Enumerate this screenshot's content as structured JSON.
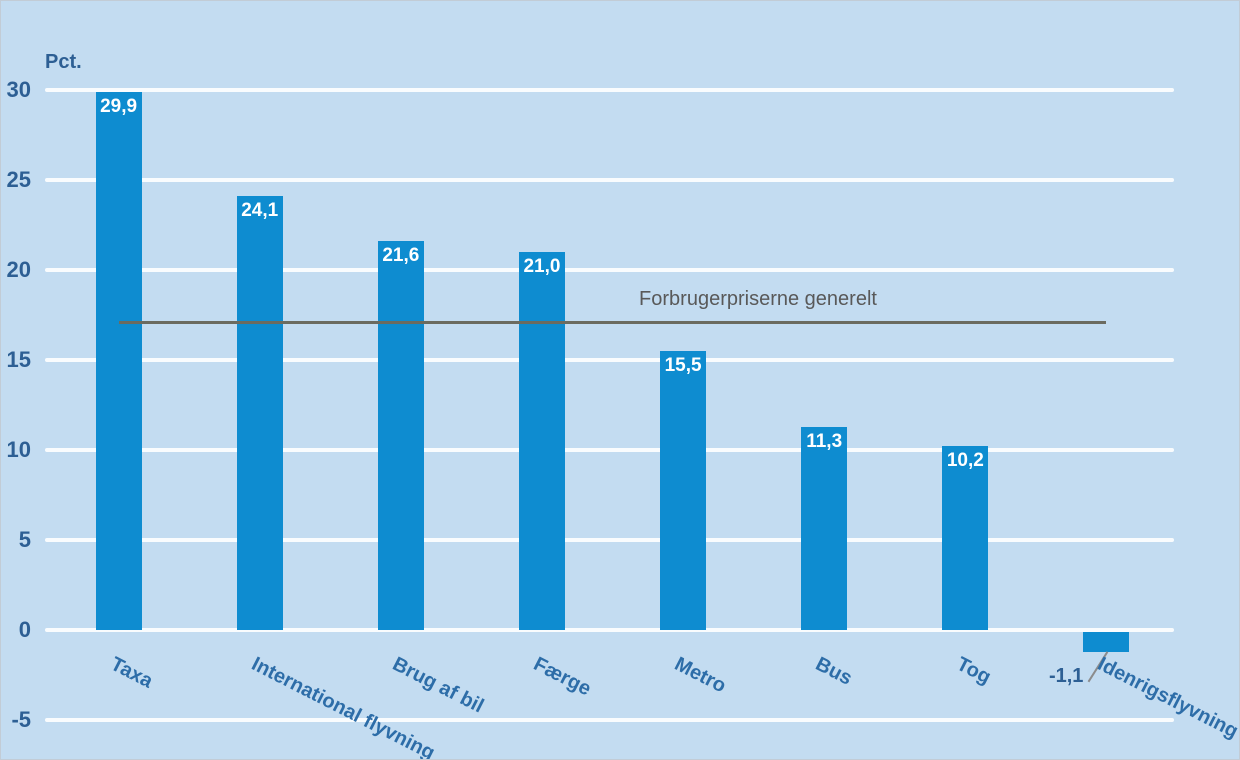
{
  "chart_data": {
    "type": "bar",
    "title": "",
    "xlabel": "",
    "ylabel": "Pct.",
    "ylim": [
      -5,
      30
    ],
    "ytick_step": 5,
    "grid": true,
    "legend": "none",
    "categories": [
      "Taxa",
      "International flyvning",
      "Brug af bil",
      "Færge",
      "Metro",
      "Bus",
      "Tog",
      "Idenrigsflyvning"
    ],
    "values": [
      29.9,
      24.1,
      21.6,
      21.0,
      15.5,
      11.3,
      10.2,
      -1.1
    ],
    "value_labels": [
      "29,9",
      "24,1",
      "21,6",
      "21,0",
      "15,5",
      "11,3",
      "10,2",
      "-1,1"
    ],
    "reference_line": {
      "label": "Forbrugerpriserne generelt",
      "value": 17.1
    },
    "colors": {
      "background": "#C3DCF1",
      "bar": "#0E8CD0",
      "gridline": "rgba(255,255,255,0.9)",
      "tick_text": "#2D5F94",
      "category_text": "#2D6DA8",
      "bar_label_text": "#FFFFFF",
      "reference_line": "#6B6B60",
      "reference_text": "#595959",
      "callout_line": "#8C8C8C"
    }
  }
}
